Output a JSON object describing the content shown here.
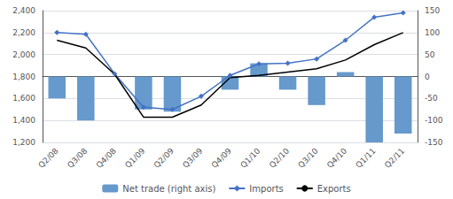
{
  "chart_data": {
    "type": "bar",
    "categories": [
      "Q2/08",
      "Q3/08",
      "Q4/08",
      "Q1/09",
      "Q2/09",
      "Q3/09",
      "Q4/09",
      "Q1/10",
      "Q2/10",
      "Q3/10",
      "Q4/10",
      "Q1/11",
      "Q2/11"
    ],
    "series": [
      {
        "name": "Net trade (right axis)",
        "type": "bar",
        "color": "#6699CC",
        "axis": "y2",
        "values": [
          -50,
          -100,
          0,
          -75,
          -80,
          0,
          -30,
          30,
          -30,
          -65,
          10,
          -150,
          -130
        ]
      },
      {
        "name": "Imports",
        "type": "line",
        "color": "#4472C4",
        "marker": "diamond",
        "values": [
          2200,
          2185,
          1825,
          1520,
          1500,
          1620,
          1810,
          1915,
          1920,
          1960,
          2130,
          2340,
          2380
        ]
      },
      {
        "name": "Exports",
        "type": "line",
        "color": "#000000",
        "marker": "none",
        "values": [
          2130,
          2060,
          1820,
          1430,
          1430,
          1540,
          1790,
          1810,
          1840,
          1870,
          1950,
          2090,
          2200
        ]
      }
    ],
    "ylim": [
      1200,
      2400
    ],
    "yticks": [
      {
        "value": 1200,
        "label": "1,200"
      },
      {
        "value": 1400,
        "label": "1,400"
      },
      {
        "value": 1600,
        "label": "1,600"
      },
      {
        "value": 1800,
        "label": "1,800"
      },
      {
        "value": 2000,
        "label": "2,000"
      },
      {
        "value": 2200,
        "label": "2,200"
      },
      {
        "value": 2400,
        "label": "2,400"
      }
    ],
    "y2lim": [
      -150,
      150
    ],
    "y2ticks": [
      -150,
      -100,
      -50,
      0,
      50,
      100,
      150
    ],
    "grid": true,
    "legend": "bottom"
  }
}
